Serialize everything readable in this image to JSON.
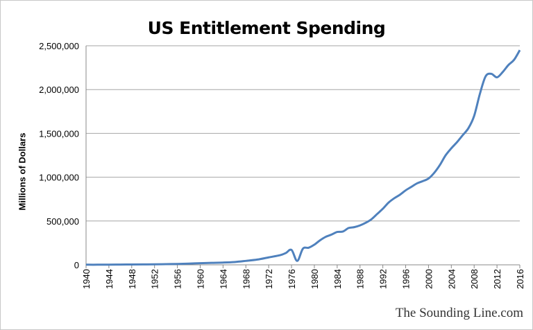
{
  "chart_data": {
    "type": "line",
    "title": "US Entitlement Spending",
    "xlabel": "",
    "ylabel": "Millions of Dollars",
    "xlim": [
      1940,
      2016
    ],
    "ylim": [
      0,
      2500000
    ],
    "x_ticks": [
      "1940",
      "1944",
      "1948",
      "1952",
      "1956",
      "1960",
      "1964",
      "1968",
      "1972",
      "1976",
      "1980",
      "1984",
      "1988",
      "1992",
      "1996",
      "2000",
      "2004",
      "2008",
      "2012",
      "2016"
    ],
    "y_ticks": [
      "0",
      "500,000",
      "1,000,000",
      "1,500,000",
      "2,000,000",
      "2,500,000"
    ],
    "grid": true,
    "line_color": "#4F81BD",
    "series": [
      {
        "x": [
          1940,
          1942,
          1944,
          1946,
          1948,
          1950,
          1952,
          1954,
          1956,
          1958,
          1960,
          1962,
          1964,
          1966,
          1968,
          1970,
          1972,
          1974,
          1975,
          1976,
          1977,
          1978,
          1979,
          1980,
          1981,
          1982,
          1983,
          1984,
          1985,
          1986,
          1987,
          1988,
          1989,
          1990,
          1991,
          1992,
          1993,
          1994,
          1995,
          1996,
          1997,
          1998,
          1999,
          2000,
          2001,
          2002,
          2003,
          2004,
          2005,
          2006,
          2007,
          2008,
          2009,
          2010,
          2011,
          2012,
          2013,
          2014,
          2015,
          2016
        ],
        "values": [
          1500,
          1500,
          2000,
          3000,
          4000,
          5000,
          6000,
          8000,
          10000,
          14000,
          19000,
          23000,
          26000,
          32000,
          45000,
          60000,
          85000,
          110000,
          135000,
          170000,
          45000,
          185000,
          195000,
          230000,
          280000,
          320000,
          345000,
          375000,
          380000,
          420000,
          430000,
          450000,
          480000,
          520000,
          580000,
          640000,
          710000,
          760000,
          800000,
          850000,
          890000,
          930000,
          955000,
          985000,
          1050000,
          1140000,
          1250000,
          1330000,
          1400000,
          1480000,
          1560000,
          1700000,
          1950000,
          2150000,
          2180000,
          2140000,
          2200000,
          2280000,
          2340000,
          2450000
        ]
      }
    ]
  },
  "watermark": "The Sounding Line.com"
}
